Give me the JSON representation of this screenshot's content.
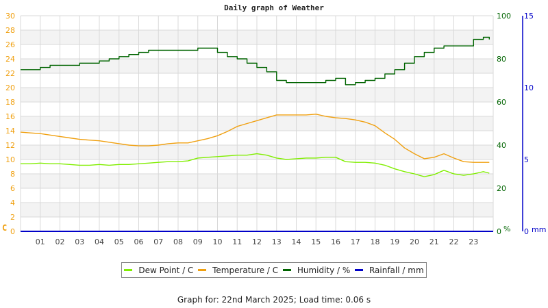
{
  "title": "Daily graph of Weather",
  "footer": "Graph for: 22nd March 2025; Load time: 0.06 s",
  "colors": {
    "dew_point": "#80ee00",
    "temperature": "#f0a010",
    "humidity": "#006400",
    "rainfall": "#0000c8",
    "left_axis": "#f0a010",
    "humidity_axis": "#006400",
    "rain_axis": "#0000c8",
    "grid": "#d8d8d8",
    "band": "#f3f3f3"
  },
  "legend": [
    {
      "label": "Dew Point / C",
      "color": "#80ee00"
    },
    {
      "label": "Temperature / C",
      "color": "#f0a010"
    },
    {
      "label": "Humidity / %",
      "color": "#006400"
    },
    {
      "label": "Rainfall / mm",
      "color": "#0000c8"
    }
  ],
  "chart_data": {
    "type": "line",
    "title": "Daily graph of Weather",
    "xlabel": "",
    "x_ticks": [
      "01",
      "02",
      "03",
      "04",
      "05",
      "06",
      "07",
      "08",
      "09",
      "10",
      "11",
      "12",
      "13",
      "14",
      "15",
      "16",
      "17",
      "18",
      "19",
      "20",
      "21",
      "22",
      "23"
    ],
    "xlim": [
      0,
      24
    ],
    "axes": {
      "left": {
        "label": "C",
        "ticks": [
          0,
          2,
          4,
          6,
          8,
          10,
          12,
          14,
          16,
          18,
          20,
          22,
          24,
          26,
          28,
          30
        ],
        "ylim": [
          0,
          30
        ]
      },
      "right_humidity": {
        "label": "%",
        "ticks": [
          0,
          20,
          40,
          60,
          80,
          100
        ],
        "ylim": [
          0,
          100
        ]
      },
      "right_rain": {
        "label": "mm",
        "ticks": [
          0,
          5,
          10,
          15
        ],
        "ylim": [
          0,
          15
        ]
      }
    },
    "grid": true,
    "legend_position": "bottom",
    "x": [
      0,
      0.5,
      1,
      1.5,
      2,
      2.5,
      3,
      3.5,
      4,
      4.5,
      5,
      5.5,
      6,
      6.5,
      7,
      7.5,
      8,
      8.5,
      9,
      9.5,
      10,
      10.5,
      11,
      11.5,
      12,
      12.5,
      13,
      13.5,
      14,
      14.5,
      15,
      15.5,
      16,
      16.5,
      17,
      17.5,
      18,
      18.5,
      19,
      19.5,
      20,
      20.5,
      21,
      21.5,
      22,
      22.5,
      23,
      23.5,
      23.8
    ],
    "series": [
      {
        "name": "Dew Point / C",
        "axis": "left",
        "values": [
          9.4,
          9.4,
          9.5,
          9.4,
          9.4,
          9.3,
          9.2,
          9.2,
          9.3,
          9.2,
          9.3,
          9.3,
          9.4,
          9.5,
          9.6,
          9.7,
          9.7,
          9.8,
          10.2,
          10.3,
          10.4,
          10.5,
          10.6,
          10.6,
          10.8,
          10.6,
          10.2,
          10.0,
          10.1,
          10.2,
          10.2,
          10.3,
          10.3,
          9.7,
          9.6,
          9.6,
          9.5,
          9.2,
          8.7,
          8.3,
          8.0,
          7.6,
          7.9,
          8.5,
          8.0,
          7.8,
          8.0,
          8.3,
          8.1
        ]
      },
      {
        "name": "Temperature / C",
        "axis": "left",
        "values": [
          13.8,
          13.7,
          13.6,
          13.4,
          13.2,
          13.0,
          12.8,
          12.7,
          12.6,
          12.4,
          12.2,
          12.0,
          11.9,
          11.9,
          12.0,
          12.2,
          12.3,
          12.3,
          12.6,
          12.9,
          13.3,
          13.9,
          14.6,
          15.0,
          15.4,
          15.8,
          16.2,
          16.2,
          16.2,
          16.2,
          16.3,
          16.0,
          15.8,
          15.7,
          15.5,
          15.2,
          14.7,
          13.7,
          12.8,
          11.6,
          10.8,
          10.1,
          10.3,
          10.8,
          10.2,
          9.7,
          9.6,
          9.6,
          9.6
        ]
      },
      {
        "name": "Humidity / %",
        "axis": "right_humidity",
        "values": [
          75,
          75,
          76,
          77,
          77,
          77,
          78,
          78,
          79,
          80,
          81,
          82,
          83,
          84,
          84,
          84,
          84,
          84,
          85,
          85,
          83,
          81,
          80,
          78,
          76,
          74,
          70,
          69,
          69,
          69,
          69,
          70,
          71,
          68,
          69,
          70,
          71,
          73,
          75,
          78,
          81,
          83,
          85,
          86,
          86,
          86,
          89,
          90,
          89
        ]
      },
      {
        "name": "Rainfall / mm",
        "axis": "right_rain",
        "values": [
          0,
          0,
          0,
          0,
          0,
          0,
          0,
          0,
          0,
          0,
          0,
          0,
          0,
          0,
          0,
          0,
          0,
          0,
          0,
          0,
          0,
          0,
          0,
          0,
          0,
          0,
          0,
          0,
          0,
          0,
          0,
          0,
          0,
          0,
          0,
          0,
          0,
          0,
          0,
          0,
          0,
          0,
          0,
          0,
          0,
          0,
          0,
          0,
          0
        ]
      }
    ]
  }
}
